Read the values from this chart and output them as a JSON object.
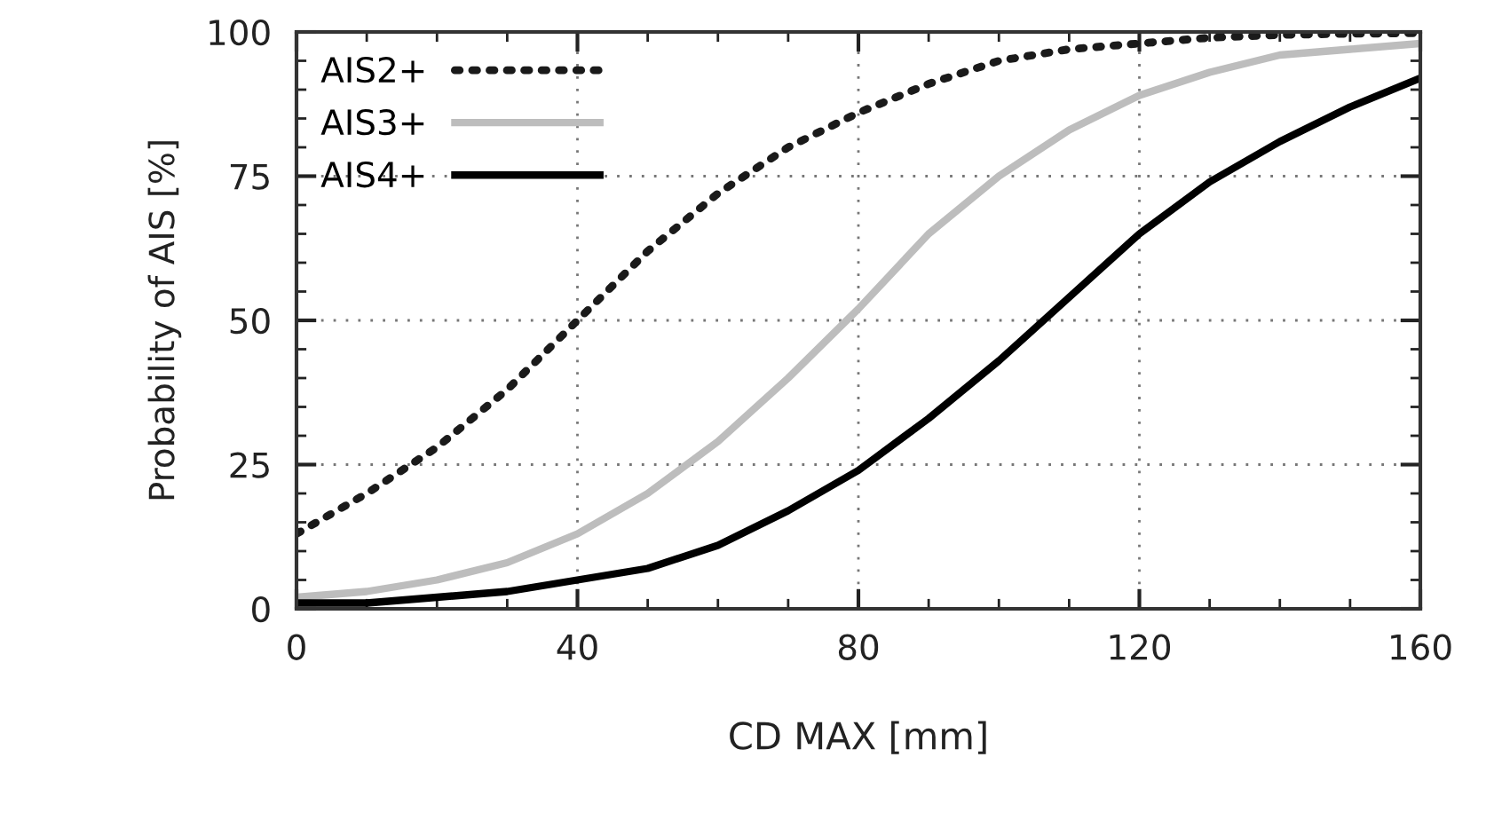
{
  "chart_data": {
    "type": "line",
    "xlabel": "CD MAX [mm]",
    "ylabel": "Probability of AIS [%]",
    "x": [
      0,
      10,
      20,
      30,
      40,
      50,
      60,
      70,
      80,
      90,
      100,
      110,
      120,
      130,
      140,
      150,
      160
    ],
    "series": [
      {
        "name": "AIS2+",
        "color": "#1a1a1a",
        "line_style": "dotted",
        "values": [
          13,
          20,
          28,
          38,
          50,
          62,
          72,
          80,
          86,
          91,
          95,
          97,
          98,
          99,
          99.5,
          99.7,
          99.8
        ]
      },
      {
        "name": "AIS3+",
        "color": "#bdbdbd",
        "line_style": "solid",
        "values": [
          2,
          3,
          5,
          8,
          13,
          20,
          29,
          40,
          52,
          65,
          75,
          83,
          89,
          93,
          96,
          97,
          98
        ]
      },
      {
        "name": "AIS4+",
        "color": "#000000",
        "line_style": "solid",
        "values": [
          1,
          1,
          2,
          3,
          5,
          7,
          11,
          17,
          24,
          33,
          43,
          54,
          65,
          74,
          81,
          87,
          92
        ]
      }
    ],
    "xlim": [
      0,
      160
    ],
    "ylim": [
      0,
      100
    ],
    "xticks": [
      0,
      40,
      80,
      120,
      160
    ],
    "yticks": [
      0,
      25,
      50,
      75,
      100
    ],
    "grid": true,
    "legend": "top left",
    "marker": "none"
  }
}
